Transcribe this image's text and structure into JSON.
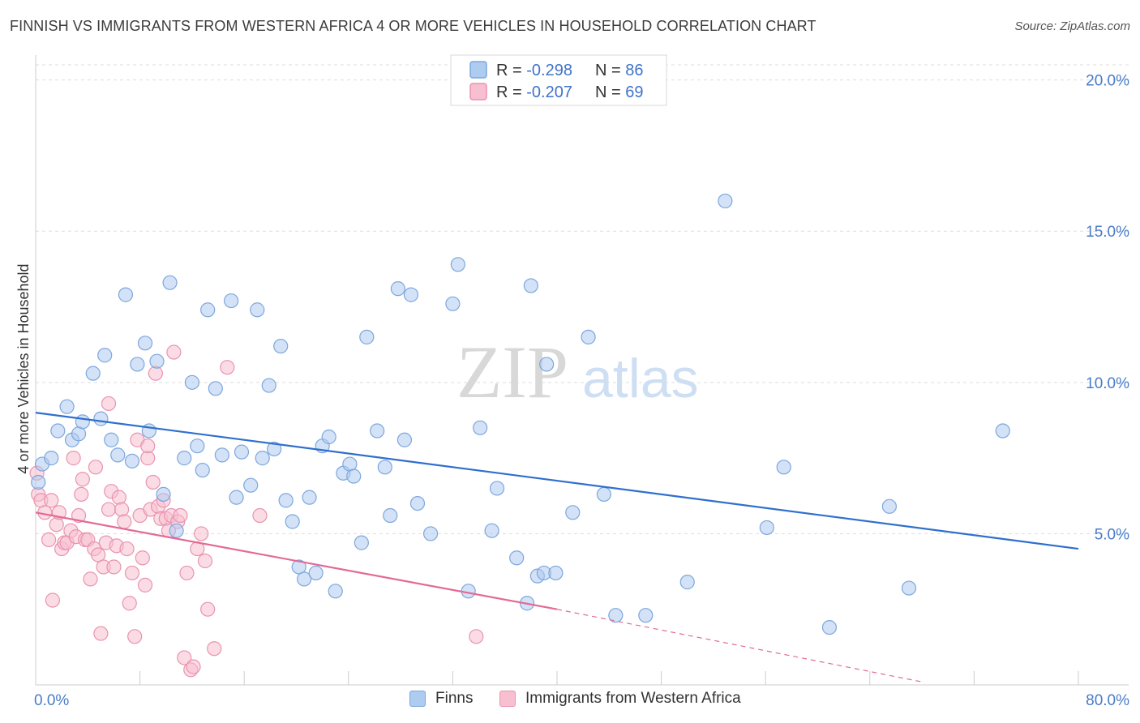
{
  "title": "FINNISH VS IMMIGRANTS FROM WESTERN AFRICA 4 OR MORE VEHICLES IN HOUSEHOLD CORRELATION CHART",
  "source": "Source: ZipAtlas.com",
  "watermark": {
    "zip": "ZIP",
    "atlas": "atlas"
  },
  "colors": {
    "finns_fill": "#aecbf0",
    "finns_stroke": "#7da7dd",
    "finns_line": "#2f6fcd",
    "wa_fill": "#f7bfd0",
    "wa_stroke": "#e993b0",
    "wa_line": "#e36a95",
    "value_text": "#3f73c9",
    "grid": "#dddddd"
  },
  "legend": {
    "rows": [
      {
        "r_label": "R = ",
        "r_value": "-0.298",
        "n_label": "N = ",
        "n_value": "86"
      },
      {
        "r_label": "R = ",
        "r_value": "-0.207",
        "n_label": "N = ",
        "n_value": "69"
      }
    ]
  },
  "bottom_legend": {
    "series1": "Finns",
    "series2": "Immigrants from Western Africa"
  },
  "chart_data": {
    "type": "scatter",
    "title": "FINNISH VS IMMIGRANTS FROM WESTERN AFRICA 4 OR MORE VEHICLES IN HOUSEHOLD CORRELATION CHART",
    "xlabel": "",
    "ylabel": "4 or more Vehicles in Household",
    "xlim": [
      0,
      80
    ],
    "ylim": [
      0,
      20.5
    ],
    "x_tick_labels": [
      "0.0%",
      "80.0%"
    ],
    "y_ticks": [
      5,
      10,
      15,
      20
    ],
    "y_tick_labels": [
      "5.0%",
      "10.0%",
      "15.0%",
      "20.0%"
    ],
    "grid": true,
    "legend_position": "top-center",
    "series": [
      {
        "name": "Finns",
        "r": -0.298,
        "n": 86,
        "trend": {
          "x": [
            0,
            80
          ],
          "y": [
            9.0,
            4.5
          ]
        },
        "points": [
          [
            0.2,
            6.7
          ],
          [
            0.5,
            7.3
          ],
          [
            1.2,
            7.5
          ],
          [
            1.7,
            8.4
          ],
          [
            2.4,
            9.2
          ],
          [
            2.8,
            8.1
          ],
          [
            3.3,
            8.3
          ],
          [
            3.6,
            8.7
          ],
          [
            4.4,
            10.3
          ],
          [
            5.0,
            8.8
          ],
          [
            5.3,
            10.9
          ],
          [
            5.8,
            8.1
          ],
          [
            6.3,
            7.6
          ],
          [
            6.9,
            12.9
          ],
          [
            7.4,
            7.4
          ],
          [
            7.8,
            10.6
          ],
          [
            8.4,
            11.3
          ],
          [
            8.7,
            8.4
          ],
          [
            9.3,
            10.7
          ],
          [
            9.8,
            6.3
          ],
          [
            10.3,
            13.3
          ],
          [
            10.8,
            5.1
          ],
          [
            11.4,
            7.5
          ],
          [
            12.0,
            10.0
          ],
          [
            12.4,
            7.9
          ],
          [
            12.8,
            7.1
          ],
          [
            13.2,
            12.4
          ],
          [
            13.8,
            9.8
          ],
          [
            14.3,
            7.6
          ],
          [
            15.0,
            12.7
          ],
          [
            15.4,
            6.2
          ],
          [
            15.8,
            7.7
          ],
          [
            16.5,
            6.6
          ],
          [
            17.0,
            12.4
          ],
          [
            17.4,
            7.5
          ],
          [
            17.9,
            9.9
          ],
          [
            18.3,
            7.8
          ],
          [
            18.8,
            11.2
          ],
          [
            19.2,
            6.1
          ],
          [
            19.7,
            5.4
          ],
          [
            20.2,
            3.9
          ],
          [
            20.6,
            3.5
          ],
          [
            21.0,
            6.2
          ],
          [
            21.5,
            3.7
          ],
          [
            22.0,
            7.9
          ],
          [
            22.5,
            8.2
          ],
          [
            23.0,
            3.1
          ],
          [
            23.6,
            7.0
          ],
          [
            24.1,
            7.3
          ],
          [
            24.4,
            6.9
          ],
          [
            25.0,
            4.7
          ],
          [
            25.4,
            11.5
          ],
          [
            26.2,
            8.4
          ],
          [
            26.8,
            7.2
          ],
          [
            27.2,
            5.6
          ],
          [
            27.8,
            13.1
          ],
          [
            28.3,
            8.1
          ],
          [
            28.8,
            12.9
          ],
          [
            29.3,
            6.0
          ],
          [
            30.3,
            5.0
          ],
          [
            32.0,
            12.6
          ],
          [
            32.4,
            13.9
          ],
          [
            33.2,
            3.1
          ],
          [
            34.1,
            8.5
          ],
          [
            35.0,
            5.1
          ],
          [
            35.4,
            6.5
          ],
          [
            36.9,
            4.2
          ],
          [
            37.7,
            2.7
          ],
          [
            38.0,
            13.2
          ],
          [
            38.5,
            3.6
          ],
          [
            39.0,
            3.7
          ],
          [
            39.2,
            10.6
          ],
          [
            39.9,
            3.7
          ],
          [
            41.2,
            5.7
          ],
          [
            42.4,
            11.5
          ],
          [
            43.6,
            6.3
          ],
          [
            44.5,
            2.3
          ],
          [
            46.8,
            2.3
          ],
          [
            50.0,
            3.4
          ],
          [
            52.9,
            16.0
          ],
          [
            56.1,
            5.2
          ],
          [
            57.4,
            7.2
          ],
          [
            60.9,
            1.9
          ],
          [
            65.5,
            5.9
          ],
          [
            67.0,
            3.2
          ],
          [
            74.2,
            8.4
          ]
        ]
      },
      {
        "name": "Immigrants from Western Africa",
        "r": -0.207,
        "n": 69,
        "trend": {
          "x": [
            0,
            40
          ],
          "y": [
            5.7,
            2.5
          ]
        },
        "trend_dashed": {
          "x": [
            40,
            68
          ],
          "y": [
            2.5,
            0.1
          ]
        },
        "points": [
          [
            0.2,
            6.3
          ],
          [
            0.4,
            6.1
          ],
          [
            0.7,
            5.7
          ],
          [
            1.0,
            4.8
          ],
          [
            1.2,
            6.1
          ],
          [
            1.3,
            2.8
          ],
          [
            1.6,
            5.3
          ],
          [
            1.8,
            5.7
          ],
          [
            2.0,
            4.5
          ],
          [
            2.2,
            4.7
          ],
          [
            2.4,
            4.7
          ],
          [
            2.7,
            5.1
          ],
          [
            2.9,
            7.5
          ],
          [
            3.1,
            4.9
          ],
          [
            3.3,
            5.6
          ],
          [
            3.5,
            6.3
          ],
          [
            3.6,
            6.8
          ],
          [
            3.8,
            4.8
          ],
          [
            4.0,
            4.8
          ],
          [
            4.2,
            3.5
          ],
          [
            4.5,
            4.5
          ],
          [
            4.6,
            7.2
          ],
          [
            4.8,
            4.3
          ],
          [
            5.0,
            1.7
          ],
          [
            5.2,
            3.9
          ],
          [
            5.4,
            4.7
          ],
          [
            5.6,
            5.8
          ],
          [
            5.8,
            6.4
          ],
          [
            6.0,
            3.9
          ],
          [
            6.2,
            4.6
          ],
          [
            6.4,
            6.2
          ],
          [
            6.6,
            5.8
          ],
          [
            6.8,
            5.4
          ],
          [
            7.0,
            4.5
          ],
          [
            7.2,
            2.7
          ],
          [
            7.4,
            3.7
          ],
          [
            7.6,
            1.6
          ],
          [
            7.8,
            8.1
          ],
          [
            8.0,
            5.6
          ],
          [
            8.2,
            4.2
          ],
          [
            8.4,
            3.3
          ],
          [
            8.6,
            7.5
          ],
          [
            8.8,
            5.8
          ],
          [
            9.0,
            6.7
          ],
          [
            9.2,
            10.3
          ],
          [
            9.4,
            5.9
          ],
          [
            9.6,
            5.5
          ],
          [
            9.8,
            6.1
          ],
          [
            10.0,
            5.5
          ],
          [
            10.2,
            5.1
          ],
          [
            10.4,
            5.6
          ],
          [
            10.6,
            11.0
          ],
          [
            10.9,
            5.4
          ],
          [
            11.1,
            5.6
          ],
          [
            11.4,
            0.9
          ],
          [
            11.6,
            3.7
          ],
          [
            11.9,
            0.5
          ],
          [
            12.1,
            0.6
          ],
          [
            12.4,
            4.5
          ],
          [
            12.7,
            5.0
          ],
          [
            13.0,
            4.1
          ],
          [
            13.2,
            2.5
          ],
          [
            13.7,
            1.2
          ],
          [
            14.7,
            10.5
          ],
          [
            5.6,
            9.3
          ],
          [
            8.6,
            7.9
          ],
          [
            17.2,
            5.6
          ],
          [
            33.8,
            1.6
          ],
          [
            0.1,
            7.0
          ]
        ]
      }
    ]
  }
}
